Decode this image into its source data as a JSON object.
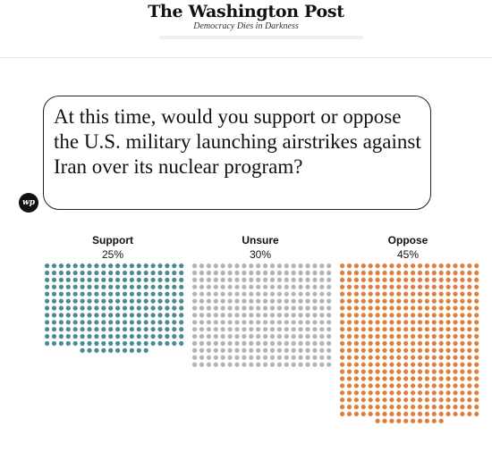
{
  "masthead": {
    "title": "The Washington Post",
    "tagline": "Democracy Dies in Darkness"
  },
  "question": {
    "text": "At this time, would you support or oppose the U.S. military launching airstrikes against Iran over its nuclear program?",
    "logo": "wp"
  },
  "chart_data": {
    "type": "dot-grid",
    "categories": [
      "Support",
      "Unsure",
      "Oppose"
    ],
    "labels": [
      "25%",
      "30%",
      "45%"
    ],
    "values": [
      25,
      30,
      45
    ],
    "colors": [
      "#4e8a93",
      "#b3b3b3",
      "#e07f3b"
    ]
  }
}
